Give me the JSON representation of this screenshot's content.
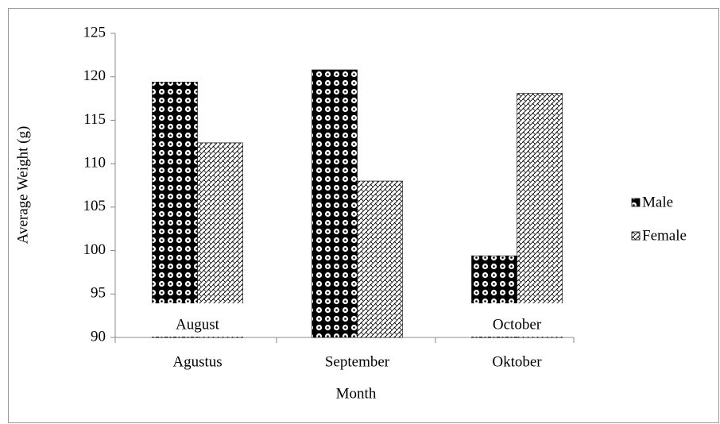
{
  "chart_data": {
    "type": "bar",
    "y_label": "Average Weight (g)",
    "x_label": "Month",
    "categories": [
      "Agustus",
      "September",
      "Oktober"
    ],
    "series": [
      {
        "name": "Male",
        "color": "#000000",
        "values": [
          119.4,
          120.8,
          99.4
        ]
      },
      {
        "name": "Female",
        "color": "#000000",
        "values": [
          112.4,
          108.0,
          118.1
        ]
      }
    ],
    "annotations": [
      "August",
      "October"
    ],
    "ylim": [
      90,
      125
    ],
    "yticks": [
      90,
      95,
      100,
      105,
      110,
      115,
      120,
      125
    ],
    "legend": "right",
    "grid": false
  }
}
